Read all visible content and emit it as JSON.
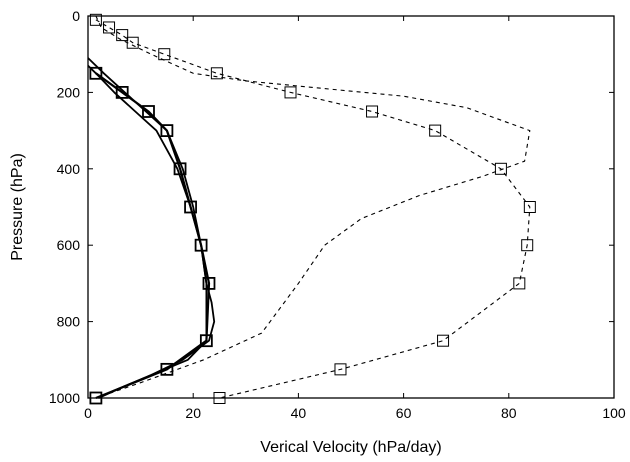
{
  "chart_data": {
    "type": "line",
    "title": "",
    "xlabel": "Verical Velocity (hPa/day)",
    "ylabel": "Pressure (hPa)",
    "xlim": [
      0,
      100
    ],
    "ylim": [
      1000,
      0
    ],
    "y_inverted": true,
    "xticks": [
      0,
      20,
      40,
      60,
      80,
      100
    ],
    "yticks": [
      0,
      200,
      400,
      600,
      800,
      1000
    ],
    "grid": false,
    "legend": "none",
    "series": [
      {
        "style": "solid",
        "marker": "none",
        "x": [
          0,
          3,
          7,
          11,
          15,
          18,
          20,
          21.5,
          22.5,
          23.5,
          24,
          23,
          18,
          12,
          6,
          2
        ],
        "y": [
          110,
          150,
          200,
          250,
          300,
          400,
          500,
          600,
          700,
          750,
          800,
          850,
          900,
          940,
          975,
          1000
        ]
      },
      {
        "style": "solid",
        "marker": "none",
        "x": [
          0,
          1.5,
          5,
          9,
          13,
          17,
          19.5,
          21.5,
          22.5,
          22.5,
          22.5,
          19,
          12,
          5,
          2
        ],
        "y": [
          130,
          150,
          200,
          250,
          300,
          400,
          500,
          600,
          700,
          800,
          850,
          900,
          940,
          980,
          1000
        ]
      },
      {
        "style": "solid-bold",
        "marker": "square",
        "x": [
          1.5,
          6.5,
          11.5,
          15,
          17.5,
          19.5,
          21.5,
          23,
          22.5,
          15,
          1.5
        ],
        "y": [
          150,
          200,
          250,
          300,
          400,
          500,
          600,
          700,
          850,
          925,
          1000
        ]
      },
      {
        "style": "dashed",
        "marker": "none",
        "x": [
          1.5,
          2.5,
          6,
          12,
          20,
          30,
          45,
          60,
          72,
          84,
          83,
          75,
          63,
          52,
          45,
          40,
          33,
          22,
          10,
          1.5
        ],
        "y": [
          0,
          30,
          60,
          100,
          150,
          170,
          190,
          210,
          240,
          300,
          380,
          420,
          470,
          530,
          600,
          700,
          830,
          900,
          960,
          1000
        ]
      },
      {
        "style": "dashed",
        "marker": "square",
        "x": [
          1.5,
          4,
          6.5,
          8.5,
          14.5,
          24.5,
          38.5,
          54,
          66,
          78.5,
          84,
          83.5,
          82,
          67.5,
          48,
          25
        ],
        "y": [
          10,
          30,
          50,
          70,
          100,
          150,
          200,
          250,
          300,
          400,
          500,
          600,
          700,
          850,
          925,
          1000
        ]
      }
    ]
  }
}
